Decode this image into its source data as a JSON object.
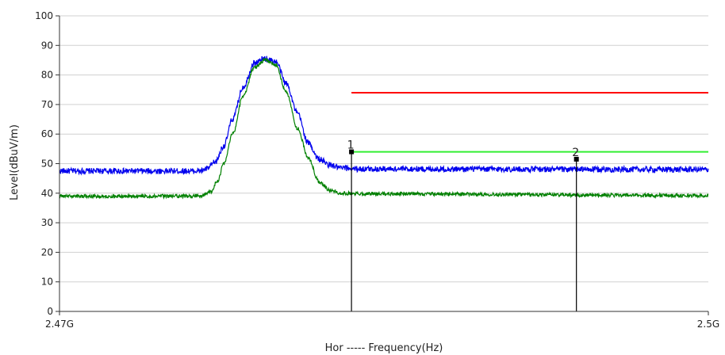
{
  "chart_data": {
    "type": "line",
    "xlabel": "Hor ----- Frequency(Hz)",
    "ylabel": "Level(dBuV/m)",
    "xlim": [
      2.47,
      2.5
    ],
    "ylim": [
      0,
      100
    ],
    "x_tick_labels": [
      {
        "x": 2.47,
        "label": "2.47G"
      },
      {
        "x": 2.5,
        "label": "2.5G"
      }
    ],
    "y_ticks": [
      0,
      10,
      20,
      30,
      40,
      50,
      60,
      70,
      80,
      90,
      100
    ],
    "grid": true,
    "series": [
      {
        "color": "#0000ee",
        "noise_amplitude": 1.0,
        "points": [
          [
            2.47,
            47.5
          ],
          [
            2.4765,
            47.5
          ],
          [
            2.4768,
            48.2
          ],
          [
            2.4772,
            50.5
          ],
          [
            2.4776,
            56
          ],
          [
            2.478,
            65
          ],
          [
            2.4785,
            76
          ],
          [
            2.479,
            84
          ],
          [
            2.4795,
            85.5
          ],
          [
            2.48,
            84.5
          ],
          [
            2.4805,
            77
          ],
          [
            2.481,
            67
          ],
          [
            2.4815,
            57
          ],
          [
            2.482,
            51.5
          ],
          [
            2.4825,
            49.5
          ],
          [
            2.483,
            48.5
          ],
          [
            2.484,
            48.2
          ],
          [
            2.5,
            48.0
          ]
        ]
      },
      {
        "color": "#008000",
        "noise_amplitude": 0.6,
        "points": [
          [
            2.47,
            39
          ],
          [
            2.4765,
            39
          ],
          [
            2.477,
            40.5
          ],
          [
            2.4773,
            44
          ],
          [
            2.4776,
            50
          ],
          [
            2.478,
            60
          ],
          [
            2.4785,
            73
          ],
          [
            2.479,
            82.5
          ],
          [
            2.4795,
            85
          ],
          [
            2.48,
            83.5
          ],
          [
            2.4805,
            74
          ],
          [
            2.481,
            62
          ],
          [
            2.4815,
            52
          ],
          [
            2.482,
            44
          ],
          [
            2.4825,
            41
          ],
          [
            2.483,
            40
          ],
          [
            2.484,
            39.8
          ],
          [
            2.5,
            39.2
          ]
        ]
      }
    ],
    "limit_lines": [
      {
        "color": "#ff0000",
        "y": 74,
        "x_start": 2.4835,
        "x_end": 2.5
      },
      {
        "color": "#33ee33",
        "y": 54,
        "x_start": 2.4835,
        "x_end": 2.5
      }
    ],
    "markers": [
      {
        "label": "1",
        "x": 2.4835,
        "y": 54
      },
      {
        "label": "2",
        "x": 2.4939,
        "y": 51.5
      }
    ]
  }
}
